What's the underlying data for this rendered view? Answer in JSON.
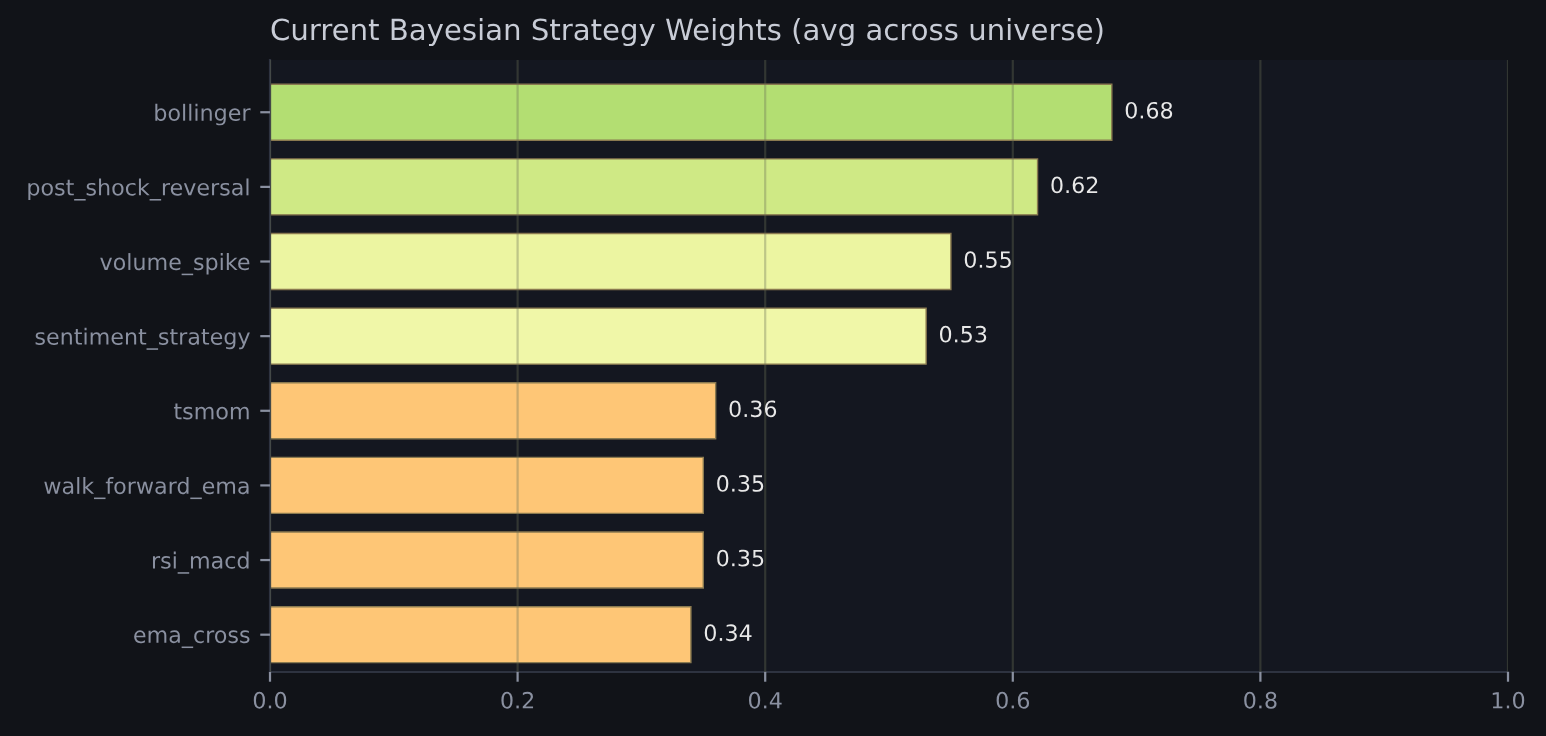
{
  "chart_data": {
    "type": "bar",
    "orientation": "horizontal",
    "title": "Current Bayesian Strategy Weights (avg across universe)",
    "categories": [
      "bollinger",
      "post_shock_reversal",
      "volume_spike",
      "sentiment_strategy",
      "tsmom",
      "walk_forward_ema",
      "rsi_macd",
      "ema_cross"
    ],
    "values": [
      0.68,
      0.62,
      0.55,
      0.53,
      0.36,
      0.35,
      0.35,
      0.34
    ],
    "colors": [
      "#b3de72",
      "#cfe985",
      "#ecf5a1",
      "#f0f7a8",
      "#fec676",
      "#fec676",
      "#fec676",
      "#fec676"
    ],
    "xlim": [
      0,
      1
    ],
    "xticks": [
      {
        "value": 0,
        "label": "0.0"
      },
      0.2,
      0.4,
      0.6,
      0.8,
      {
        "value": 1,
        "label": "1.0"
      }
    ],
    "data_labels": true,
    "grid": "x"
  }
}
